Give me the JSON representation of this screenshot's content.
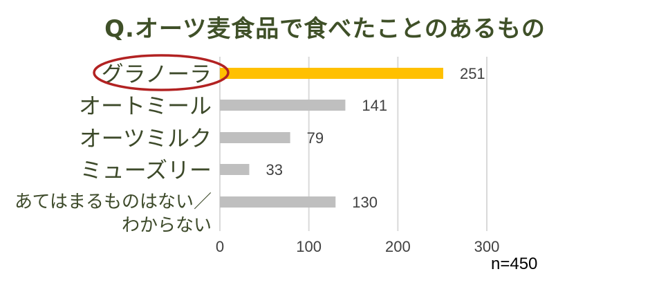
{
  "chart_data": {
    "type": "bar",
    "orientation": "horizontal",
    "title": "Q.オーツ麦食品で食べたことのあるもの",
    "categories": [
      "グラノーラ",
      "オートミール",
      "オーツミルク",
      "ミューズリー",
      "あてはまるものはない／わからない"
    ],
    "category_lines": [
      [
        "グラノーラ"
      ],
      [
        "オートミール"
      ],
      [
        "オーツミルク"
      ],
      [
        "ミューズリー"
      ],
      [
        "あてはまるものはない／",
        "わからない"
      ]
    ],
    "values": [
      251,
      141,
      79,
      33,
      130
    ],
    "data_labels": [
      "251",
      "141",
      "79",
      "33",
      "130"
    ],
    "xlim": [
      0,
      300
    ],
    "ticks": [
      0,
      100,
      200,
      300
    ],
    "tick_labels": [
      "0",
      "100",
      "200",
      "300"
    ],
    "grid": true,
    "legend": "none",
    "highlight_index": 0,
    "highlight_marker": "ellipse",
    "xlabel": "",
    "ylabel": "",
    "note": "n=450"
  },
  "colors": {
    "title": "#3f5028",
    "category_text": "#3d4a2a",
    "highlight_bar": "#ffc000",
    "bar": "#bfbfbf",
    "gridline": "#d9d9d9",
    "highlight_ellipse": "#b22222",
    "value_text": "#404040"
  }
}
